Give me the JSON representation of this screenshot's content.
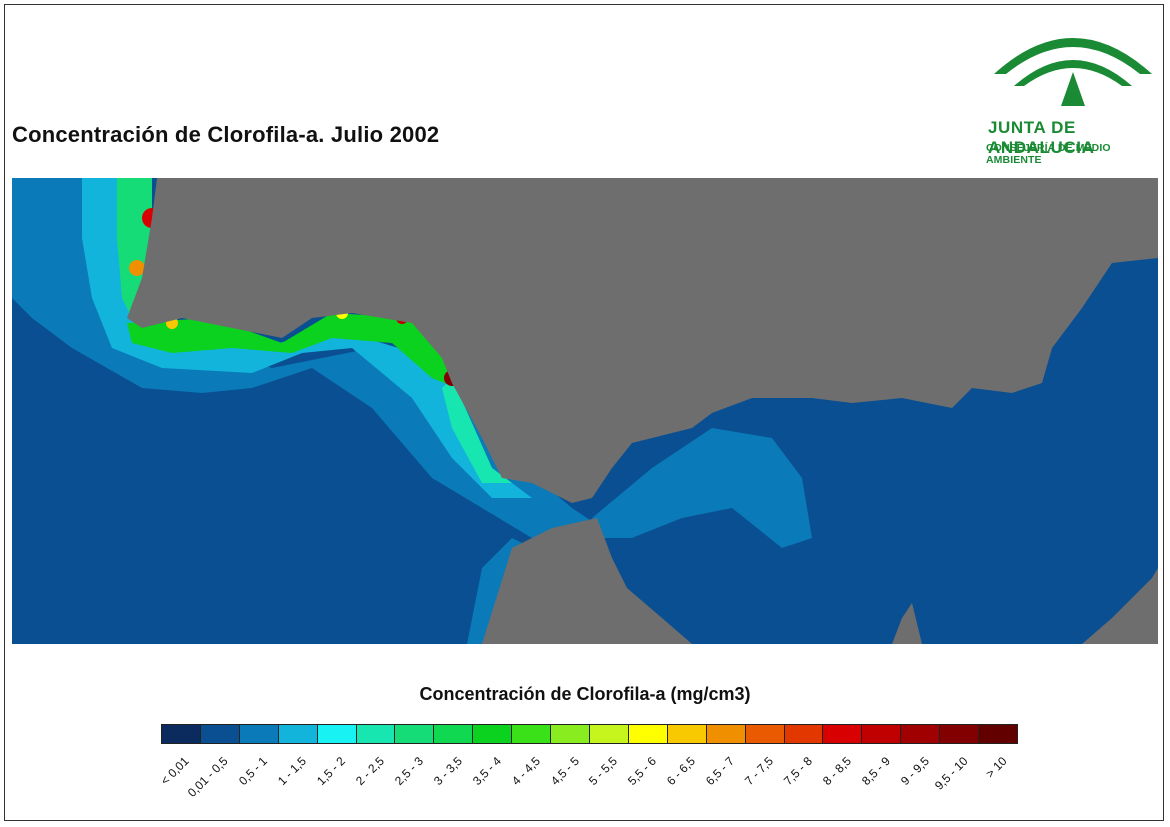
{
  "title": "Concentración de Clorofila-a. Julio 2002",
  "logo": {
    "name": "JUNTA DE ANDALUCIA",
    "subtitle": "CONSEJERÍA DE MEDIO AMBIENTE",
    "color": "#1a8a34"
  },
  "map": {
    "land_color": "#6e6e6e",
    "deep_sea_color": "#0a4f91",
    "region": "Golfo de Cádiz, Estrecho de Gibraltar y Mar de Alborán"
  },
  "legend": {
    "title": "Concentración de Clorofila-a (mg/cm3)",
    "classes": [
      {
        "label": "< 0,01",
        "color": "#0b2a5e"
      },
      {
        "label": "0,01 - 0,5",
        "color": "#0a4f91"
      },
      {
        "label": "0,5 - 1",
        "color": "#0b7ab8"
      },
      {
        "label": "1 - 1,5",
        "color": "#13b4dc"
      },
      {
        "label": "1,5 - 2",
        "color": "#18f2f2"
      },
      {
        "label": "2 - 2,5",
        "color": "#18e6b0"
      },
      {
        "label": "2,5 - 3",
        "color": "#16dc78"
      },
      {
        "label": "3 - 3,5",
        "color": "#10d850"
      },
      {
        "label": "3,5 - 4",
        "color": "#0ad21e"
      },
      {
        "label": "4 - 4,5",
        "color": "#3ae018"
      },
      {
        "label": "4,5 - 5",
        "color": "#88ec1e"
      },
      {
        "label": "5 - 5,5",
        "color": "#c6f51e"
      },
      {
        "label": "5,5 - 6",
        "color": "#ffff00"
      },
      {
        "label": "6 - 6,5",
        "color": "#f8c800"
      },
      {
        "label": "6,5 - 7",
        "color": "#f09000"
      },
      {
        "label": "7 - 7,5",
        "color": "#ea5a00"
      },
      {
        "label": "7,5 - 8",
        "color": "#e23800"
      },
      {
        "label": "8 - 8,5",
        "color": "#d80000"
      },
      {
        "label": "8,5 - 9",
        "color": "#c00000"
      },
      {
        "label": "9 - 9,5",
        "color": "#a00000"
      },
      {
        "label": "9,5 - 10",
        "color": "#820000"
      },
      {
        "label": "> 10",
        "color": "#620000"
      }
    ]
  }
}
